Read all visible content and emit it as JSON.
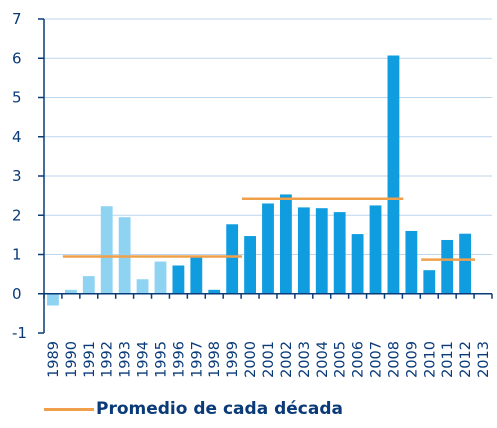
{
  "chart_data": {
    "type": "bar",
    "categories": [
      "1989",
      "1990",
      "1991",
      "1992",
      "1993",
      "1994",
      "1995",
      "1996",
      "1997",
      "1998",
      "1999",
      "2000",
      "2001",
      "2002",
      "2003",
      "2004",
      "2005",
      "2006",
      "2007",
      "2008",
      "2009",
      "2010",
      "2011",
      "2012",
      "2013"
    ],
    "values": [
      -0.3,
      0.1,
      0.45,
      2.23,
      1.95,
      0.37,
      0.82,
      0.72,
      0.93,
      0.1,
      1.77,
      1.47,
      2.3,
      2.53,
      2.2,
      2.18,
      2.08,
      1.52,
      2.25,
      6.07,
      1.6,
      0.6,
      1.37,
      1.53,
      null
    ],
    "ylim": [
      -1,
      7
    ],
    "yticks": [
      -1,
      0,
      1,
      2,
      3,
      4,
      5,
      6,
      7
    ],
    "grid": true,
    "colors": {
      "light_bar": "#8fd3f2",
      "dark_bar": "#0f9de0",
      "average_line": "#f0a04b",
      "axis": "#0a3a78",
      "grid": "#bcd6ee"
    },
    "bar_color_groups": [
      {
        "from": "1989",
        "to": "1995",
        "color": "light"
      },
      {
        "from": "1996",
        "to": "2013",
        "color": "dark"
      }
    ],
    "decade_averages": [
      {
        "from": "1990",
        "to": "1999",
        "value": 0.95
      },
      {
        "from": "2000",
        "to": "2008",
        "value": 2.42
      },
      {
        "from": "2010",
        "to": "2012",
        "value": 0.87
      }
    ],
    "legend": {
      "label": "Promedio de cada década",
      "position": "bottom-left"
    }
  }
}
